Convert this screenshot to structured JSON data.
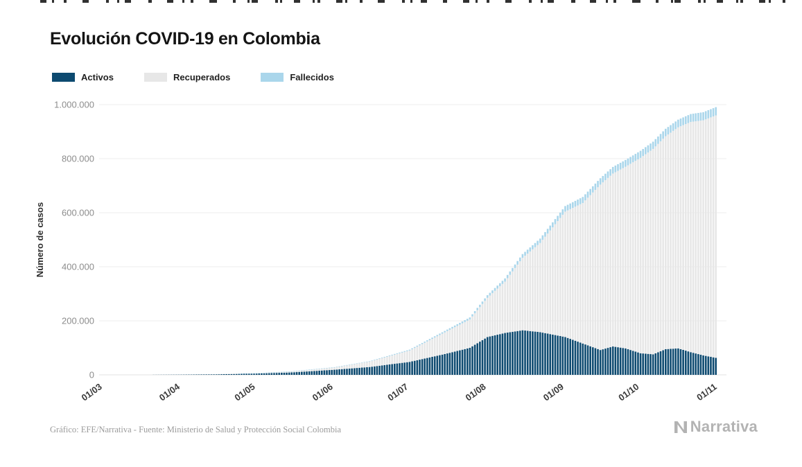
{
  "page": {
    "title": "Evolución COVID-19 en Colombia",
    "credit": "Gráfico: EFE/Narrativa - Fuente: Ministerio de Salud y Protección Social Colombia",
    "brand": "Narrativa"
  },
  "legend": {
    "items": [
      {
        "label": "Activos",
        "color": "#0d4a70"
      },
      {
        "label": "Recuperados",
        "color": "#e7e7e7"
      },
      {
        "label": "Fallecidos",
        "color": "#aad6eb"
      }
    ]
  },
  "chart_data": {
    "type": "bar",
    "stacked": true,
    "title": "Evolución COVID-19 en Colombia",
    "xlabel": "",
    "ylabel": "Número de casos",
    "ylim": [
      0,
      1000000
    ],
    "grid": true,
    "legend_position": "top-left",
    "x_tick_labels": [
      "01/03",
      "01/04",
      "01/05",
      "01/06",
      "01/07",
      "01/08",
      "01/09",
      "01/10",
      "01/11"
    ],
    "x_tick_days": [
      0,
      31,
      61,
      92,
      122,
      153,
      184,
      214,
      245
    ],
    "y_tick_values": [
      0,
      200000,
      400000,
      600000,
      800000,
      1000000
    ],
    "y_tick_labels": [
      "0",
      "200.000",
      "400.000",
      "600.000",
      "800.000",
      "1.000.000"
    ],
    "x_range_days": [
      0,
      245
    ],
    "series": [
      {
        "name": "Activos",
        "color": "#0d4a70"
      },
      {
        "name": "Recuperados",
        "color": "#e7e7e7"
      },
      {
        "name": "Fallecidos",
        "color": "#aad6eb"
      }
    ],
    "keyframes": {
      "note": "stacked daily bars interpolated between these sampled days (day 0 = 01/03, day 245 = 01/11)",
      "day": [
        0,
        14,
        31,
        45,
        61,
        75,
        92,
        106,
        122,
        136,
        146,
        153,
        160,
        167,
        174,
        184,
        191,
        198,
        203,
        208,
        214,
        219,
        224,
        229,
        234,
        239,
        244
      ],
      "activos": [
        0,
        24,
        790,
        2050,
        4700,
        9000,
        19000,
        29000,
        48000,
        77000,
        100000,
        140000,
        155000,
        165000,
        158000,
        140000,
        116000,
        92000,
        105000,
        98000,
        80000,
        76000,
        95000,
        98000,
        84000,
        72000,
        63000
      ],
      "recuperados": [
        0,
        1,
        100,
        700,
        1600,
        3600,
        8500,
        20000,
        42000,
        80000,
        105000,
        145000,
        190000,
        268000,
        330000,
        464000,
        520000,
        612000,
        640000,
        672000,
        723000,
        760000,
        788000,
        818000,
        852000,
        870000,
        897000
      ],
      "fallecidos": [
        0,
        0,
        16,
        180,
        320,
        600,
        950,
        1700,
        3300,
        5600,
        7500,
        9800,
        11900,
        14000,
        16300,
        20600,
        22300,
        23600,
        24400,
        25100,
        26100,
        26900,
        27700,
        28400,
        29200,
        30000,
        30700
      ]
    }
  }
}
